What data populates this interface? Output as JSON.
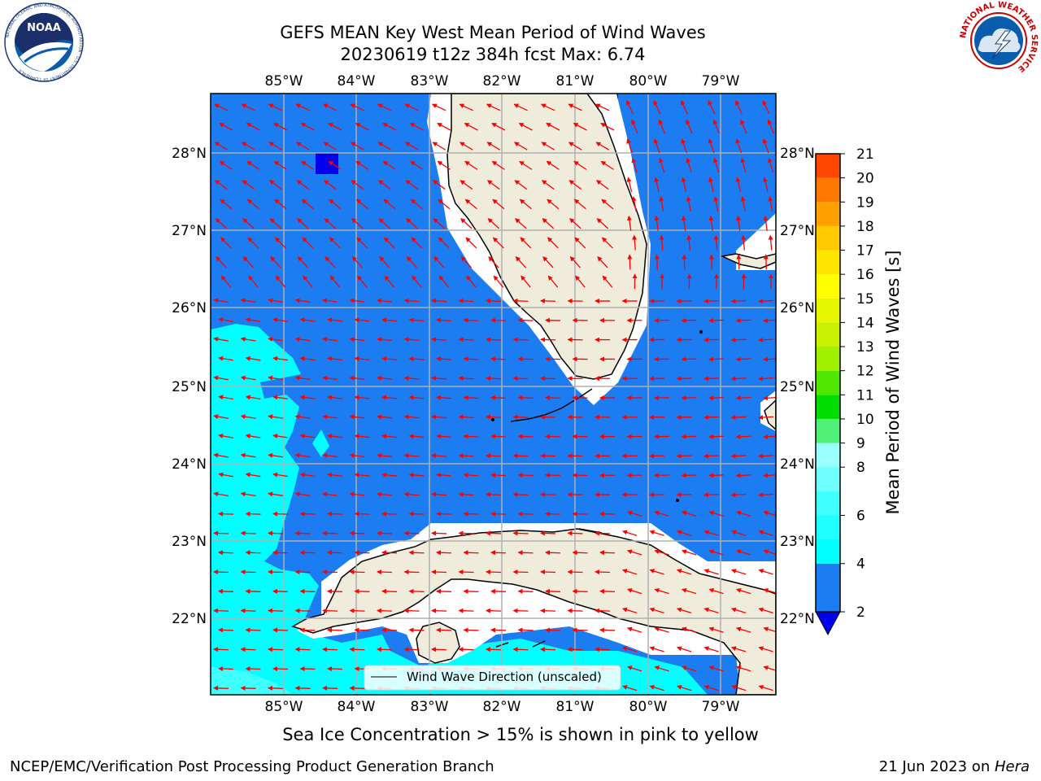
{
  "title": {
    "line1": "GEFS MEAN Key West Mean Period of Wind Waves",
    "line2": "20230619 t12z 384h fcst   Max: 6.74"
  },
  "logos": {
    "left": {
      "text": "NOAA",
      "ring_text": "NATIONAL OCEANIC AND ATMOSPHERIC ADMINISTRATION · U.S. DEPARTMENT OF COMMERCE"
    },
    "right": {
      "ring_text": "NATIONAL WEATHER SERVICE"
    }
  },
  "map": {
    "lon_labels": [
      "85°W",
      "84°W",
      "83°W",
      "82°W",
      "81°W",
      "80°W",
      "79°W"
    ],
    "lat_labels": [
      "28°N",
      "27°N",
      "26°N",
      "25°N",
      "24°N",
      "23°N",
      "22°N"
    ],
    "legend_label": "Wind Wave Direction (unscaled)",
    "colors": {
      "ocean_2_4": "#1c7df2",
      "ocean_4_6": "#00ffff",
      "ocean_below_2": "#0000ee",
      "land": "#efecdc",
      "arrow": "#ff0000",
      "grid": "#b0b0b0"
    }
  },
  "colorbar": {
    "label": "Mean Period of Wind Waves [s]",
    "ticks": [
      "2",
      "4",
      "6",
      "8",
      "9",
      "10",
      "11",
      "12",
      "13",
      "14",
      "15",
      "16",
      "17",
      "18",
      "19",
      "20",
      "21"
    ],
    "colors": [
      "#1c7df2",
      "#00ffff",
      "#40ffff",
      "#99ffff",
      "#50f078",
      "#00dc00",
      "#50e600",
      "#a0f000",
      "#c8f000",
      "#e6f500",
      "#ffff00",
      "#ffe600",
      "#ffc800",
      "#ffa000",
      "#ff7800",
      "#ff4600",
      "#ff0000"
    ],
    "under_color": "#0000ee"
  },
  "note": "Sea Ice Concentration > 15% is shown in pink to yellow",
  "footer": {
    "left": "NCEP/EMC/Verification Post Processing Product Generation Branch",
    "date": "21 Jun 2023 on ",
    "machine": "Hera"
  }
}
